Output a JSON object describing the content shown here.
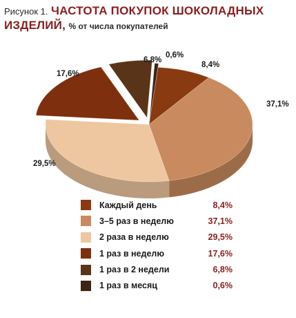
{
  "header": {
    "prefix": "Рисунок 1.",
    "title_line1": "ЧАСТОТА ПОКУПОК ШОКОЛАДНЫХ",
    "title_line2": "ИЗДЕЛИЙ,",
    "subtitle": "% от числа покупателей"
  },
  "chart_data": {
    "type": "pie",
    "title": "ЧАСТОТА ПОКУПОК ШОКОЛАДНЫХ ИЗДЕЛИЙ, % от числа покупателей",
    "legend_position": "bottom",
    "slices": [
      {
        "name": "Каждый день",
        "value": 8.4,
        "label": "8,4%",
        "color": "#8a3a10"
      },
      {
        "name": "3–5 раз в неделю",
        "value": 37.1,
        "label": "37,1%",
        "color": "#c88a5e"
      },
      {
        "name": "2 раза в неделю",
        "value": 29.5,
        "label": "29,5%",
        "color": "#eec7a0"
      },
      {
        "name": "1 раз в неделю",
        "value": 17.6,
        "label": "17,6%",
        "color": "#7e2f0e"
      },
      {
        "name": "1 раз в 2 недели",
        "value": 6.8,
        "label": "6,8%",
        "color": "#5a3418"
      },
      {
        "name": "1 раз в месяц",
        "value": 0.6,
        "label": "0,6%",
        "color": "#3e2414"
      }
    ]
  }
}
